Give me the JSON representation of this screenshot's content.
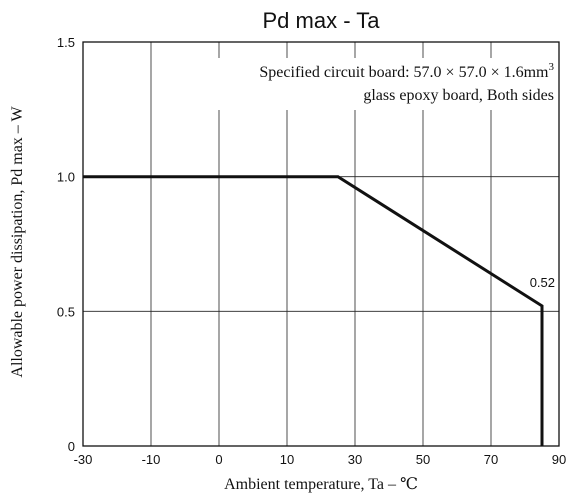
{
  "chart_data": {
    "type": "line",
    "title": "Pd max  -  Ta",
    "xlabel": "Ambient temperature, Ta –  ℃",
    "ylabel": "Allowable power dissipation, Pd max – W",
    "xlim": [
      -30,
      90
    ],
    "ylim": [
      0,
      1.5
    ],
    "x_ticks": [
      -30,
      -10,
      0,
      10,
      30,
      50,
      70,
      90
    ],
    "x_tick_labels": [
      "-30",
      "-10",
      "0",
      "10",
      "30",
      "50",
      "70",
      "90"
    ],
    "y_ticks": [
      0,
      0.5,
      1.0,
      1.5
    ],
    "y_tick_labels": [
      "0",
      "0.5",
      "1.0",
      "1.5"
    ],
    "grid": true,
    "series": [
      {
        "x": [
          -30,
          25,
          85,
          85
        ],
        "y": [
          1.0,
          1.0,
          0.52,
          0
        ]
      }
    ],
    "annotations": {
      "point_label": "0.52",
      "note_line1": "Specified circuit board: 57.0 × 57.0 × 1.6mm",
      "note_line1_superscript": "3",
      "note_line2": "glass epoxy board, Both sides"
    }
  }
}
